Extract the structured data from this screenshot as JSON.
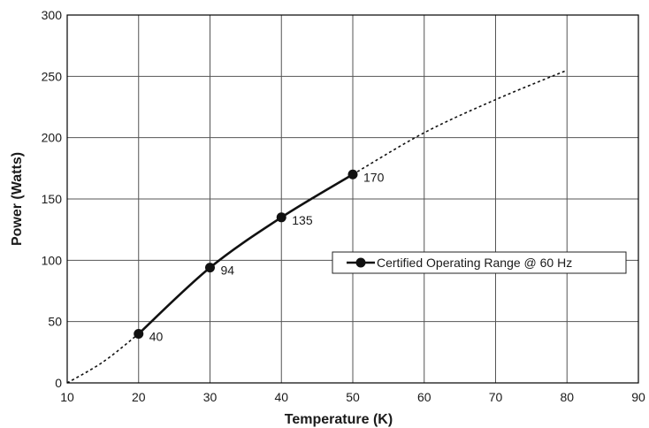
{
  "chart_data": {
    "type": "line",
    "title": "",
    "xlabel": "Temperature (K)",
    "ylabel": "Power (Watts)",
    "xlim": [
      10,
      90
    ],
    "ylim": [
      0,
      300
    ],
    "x_ticks": [
      "10",
      "20",
      "30",
      "40",
      "50",
      "60",
      "70",
      "80",
      "90"
    ],
    "y_ticks": [
      "0",
      "50",
      "100",
      "150",
      "200",
      "250",
      "300"
    ],
    "grid": true,
    "legend_position": "center-right",
    "series": [
      {
        "name": "Certified Operating Range @ 60 Hz",
        "style": "solid-with-markers",
        "color": "#111111",
        "x": [
          20,
          30,
          40,
          50
        ],
        "y": [
          40,
          94,
          135,
          170
        ],
        "labels": [
          "40",
          "94",
          "135",
          "170"
        ]
      },
      {
        "style": "dotted",
        "color": "#111111",
        "x": [
          10,
          15,
          20
        ],
        "y": [
          0,
          17,
          40
        ]
      },
      {
        "style": "dotted",
        "color": "#111111",
        "x": [
          50,
          60,
          70,
          80
        ],
        "y": [
          170,
          204,
          231,
          255
        ]
      }
    ]
  }
}
